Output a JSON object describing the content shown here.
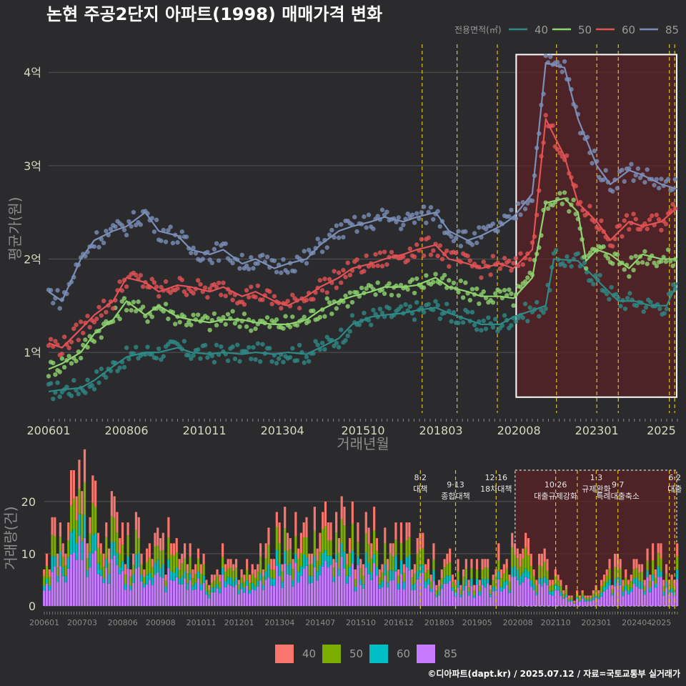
{
  "title": "논현 주공2단지 아파트(1998) 매매가격 변화",
  "credit": "©디아파트(dapt.kr) / 2025.07.12 / 자료=국토교통부 실거래가",
  "colors": {
    "background": "#2b2b2d",
    "grid": "#545454",
    "highlight_fill": "#5a2226",
    "highlight_border": "#ffffff",
    "event_line": "#e0c020",
    "price_series": [
      "#2e8a86",
      "#8fd46f",
      "#e35255",
      "#7b8fb8"
    ],
    "volume_series": [
      "#f8766d",
      "#7cae00",
      "#00bfc4",
      "#c77cff"
    ]
  },
  "chart_data": [
    {
      "type": "line",
      "title": "논현 주공2단지 아파트(1998) 매매가격 변화",
      "xlabel": "거래년월",
      "ylabel": "평균가(원)",
      "x_ticks": [
        "200601",
        "200806",
        "201011",
        "201304",
        "201510",
        "201803",
        "202008",
        "202301",
        "2025"
      ],
      "y_ticks": [
        "1억",
        "2억",
        "3억",
        "4억"
      ],
      "y_tick_values": [
        1,
        2,
        3,
        4
      ],
      "y_unit": "억원",
      "ylim": [
        0.35,
        4.3
      ],
      "x_range": [
        "2006-01",
        "2025-07"
      ],
      "grid": true,
      "legend_title": "전용면적(㎡)",
      "legend_position": "top-right",
      "highlight_range": [
        "2020-07",
        "2025-07"
      ],
      "x_unit": "거래년월 (year-month)",
      "series": [
        {
          "name": "40",
          "points": [
            [
              "2006-01",
              0.58
            ],
            [
              "2006-06",
              0.6
            ],
            [
              "2007-01",
              0.62
            ],
            [
              "2007-06",
              0.7
            ],
            [
              "2008-01",
              0.85
            ],
            [
              "2008-06",
              0.95
            ],
            [
              "2009-01",
              1.0
            ],
            [
              "2009-06",
              1.0
            ],
            [
              "2010-01",
              1.05
            ],
            [
              "2010-06",
              1.0
            ],
            [
              "2011-01",
              0.98
            ],
            [
              "2011-06",
              1.0
            ],
            [
              "2012-01",
              0.98
            ],
            [
              "2012-06",
              1.0
            ],
            [
              "2013-01",
              0.98
            ],
            [
              "2013-06",
              1.0
            ],
            [
              "2014-01",
              0.98
            ],
            [
              "2014-06",
              1.05
            ],
            [
              "2015-01",
              1.15
            ],
            [
              "2015-06",
              1.3
            ],
            [
              "2016-01",
              1.38
            ],
            [
              "2016-06",
              1.4
            ],
            [
              "2017-01",
              1.42
            ],
            [
              "2017-06",
              1.45
            ],
            [
              "2018-01",
              1.48
            ],
            [
              "2018-06",
              1.42
            ],
            [
              "2019-01",
              1.35
            ],
            [
              "2019-06",
              1.3
            ],
            [
              "2020-01",
              1.3
            ],
            [
              "2020-06",
              1.38
            ],
            [
              "2021-01",
              1.45
            ],
            [
              "2021-06",
              1.5
            ],
            [
              "2021-09",
              2.0
            ],
            [
              "2022-06",
              1.98
            ],
            [
              "2023-03",
              1.72
            ],
            [
              "2023-09",
              1.55
            ],
            [
              "2024-03",
              1.55
            ],
            [
              "2024-09",
              1.5
            ],
            [
              "2025-03",
              1.5
            ],
            [
              "2025-07",
              1.75
            ]
          ]
        },
        {
          "name": "50",
          "points": [
            [
              "2006-01",
              0.82
            ],
            [
              "2006-06",
              0.88
            ],
            [
              "2007-01",
              1.0
            ],
            [
              "2007-06",
              1.2
            ],
            [
              "2008-01",
              1.35
            ],
            [
              "2008-06",
              1.55
            ],
            [
              "2009-01",
              1.4
            ],
            [
              "2009-06",
              1.5
            ],
            [
              "2010-01",
              1.38
            ],
            [
              "2010-06",
              1.35
            ],
            [
              "2011-01",
              1.32
            ],
            [
              "2011-06",
              1.35
            ],
            [
              "2012-01",
              1.35
            ],
            [
              "2012-06",
              1.32
            ],
            [
              "2013-01",
              1.3
            ],
            [
              "2013-06",
              1.3
            ],
            [
              "2014-01",
              1.35
            ],
            [
              "2014-06",
              1.45
            ],
            [
              "2015-01",
              1.55
            ],
            [
              "2015-06",
              1.6
            ],
            [
              "2016-01",
              1.65
            ],
            [
              "2016-06",
              1.7
            ],
            [
              "2017-01",
              1.7
            ],
            [
              "2017-06",
              1.72
            ],
            [
              "2018-01",
              1.8
            ],
            [
              "2018-06",
              1.7
            ],
            [
              "2019-01",
              1.65
            ],
            [
              "2019-06",
              1.6
            ],
            [
              "2020-01",
              1.6
            ],
            [
              "2020-06",
              1.58
            ],
            [
              "2021-01",
              1.8
            ],
            [
              "2021-06",
              2.6
            ],
            [
              "2022-01",
              2.65
            ],
            [
              "2022-06",
              2.5
            ],
            [
              "2022-09",
              1.98
            ],
            [
              "2023-01",
              2.1
            ],
            [
              "2023-06",
              2.05
            ],
            [
              "2024-01",
              1.9
            ],
            [
              "2024-06",
              2.05
            ],
            [
              "2025-01",
              2.0
            ],
            [
              "2025-07",
              2.0
            ]
          ]
        },
        {
          "name": "60",
          "points": [
            [
              "2006-01",
              1.1
            ],
            [
              "2006-06",
              1.05
            ],
            [
              "2007-01",
              1.25
            ],
            [
              "2007-06",
              1.4
            ],
            [
              "2008-01",
              1.55
            ],
            [
              "2008-06",
              1.8
            ],
            [
              "2009-01",
              1.75
            ],
            [
              "2009-06",
              1.65
            ],
            [
              "2010-01",
              1.72
            ],
            [
              "2010-06",
              1.7
            ],
            [
              "2011-01",
              1.65
            ],
            [
              "2011-06",
              1.7
            ],
            [
              "2012-01",
              1.6
            ],
            [
              "2012-06",
              1.65
            ],
            [
              "2013-01",
              1.55
            ],
            [
              "2013-06",
              1.5
            ],
            [
              "2014-01",
              1.6
            ],
            [
              "2014-06",
              1.7
            ],
            [
              "2015-01",
              1.8
            ],
            [
              "2015-06",
              1.9
            ],
            [
              "2016-01",
              1.95
            ],
            [
              "2016-06",
              2.0
            ],
            [
              "2017-01",
              2.05
            ],
            [
              "2017-06",
              2.1
            ],
            [
              "2018-01",
              2.15
            ],
            [
              "2018-06",
              2.0
            ],
            [
              "2019-01",
              1.95
            ],
            [
              "2019-06",
              1.9
            ],
            [
              "2020-01",
              1.95
            ],
            [
              "2020-06",
              1.9
            ],
            [
              "2021-01",
              2.1
            ],
            [
              "2021-06",
              3.5
            ],
            [
              "2022-01",
              3.1
            ],
            [
              "2022-06",
              2.6
            ],
            [
              "2023-01",
              2.4
            ],
            [
              "2023-06",
              2.2
            ],
            [
              "2024-01",
              2.4
            ],
            [
              "2024-06",
              2.35
            ],
            [
              "2025-01",
              2.4
            ],
            [
              "2025-07",
              2.55
            ]
          ]
        },
        {
          "name": "85",
          "points": [
            [
              "2006-01",
              1.65
            ],
            [
              "2006-06",
              1.55
            ],
            [
              "2007-01",
              2.0
            ],
            [
              "2007-06",
              2.2
            ],
            [
              "2008-01",
              2.3
            ],
            [
              "2008-06",
              2.35
            ],
            [
              "2009-01",
              2.5
            ],
            [
              "2009-06",
              2.3
            ],
            [
              "2010-01",
              2.25
            ],
            [
              "2010-06",
              2.1
            ],
            [
              "2011-01",
              2.05
            ],
            [
              "2011-06",
              2.1
            ],
            [
              "2012-01",
              1.95
            ],
            [
              "2012-06",
              2.0
            ],
            [
              "2013-01",
              1.9
            ],
            [
              "2013-06",
              1.95
            ],
            [
              "2014-01",
              2.0
            ],
            [
              "2014-06",
              2.15
            ],
            [
              "2015-01",
              2.3
            ],
            [
              "2015-06",
              2.35
            ],
            [
              "2016-01",
              2.4
            ],
            [
              "2016-06",
              2.45
            ],
            [
              "2017-01",
              2.4
            ],
            [
              "2017-06",
              2.45
            ],
            [
              "2018-01",
              2.5
            ],
            [
              "2018-06",
              2.3
            ],
            [
              "2019-01",
              2.2
            ],
            [
              "2019-06",
              2.25
            ],
            [
              "2020-01",
              2.35
            ],
            [
              "2020-06",
              2.45
            ],
            [
              "2021-01",
              2.7
            ],
            [
              "2021-06",
              4.1
            ],
            [
              "2022-01",
              4.05
            ],
            [
              "2022-06",
              3.5
            ],
            [
              "2023-01",
              3.0
            ],
            [
              "2023-06",
              2.8
            ],
            [
              "2024-01",
              2.95
            ],
            [
              "2024-06",
              2.9
            ],
            [
              "2025-01",
              2.8
            ],
            [
              "2025-07",
              2.75
            ]
          ]
        }
      ],
      "event_lines": [
        "2017-08",
        "2018-09",
        "2019-12",
        "2021-10",
        "2023-01",
        "2023-09",
        "2025-04",
        "2025-06"
      ]
    },
    {
      "type": "bar",
      "stacked": true,
      "ylabel": "거래량(건)",
      "y_ticks": [
        "0",
        "10",
        "20"
      ],
      "y_tick_values": [
        0,
        10,
        20
      ],
      "ylim": [
        0,
        26
      ],
      "x_ticks": [
        "200601",
        "200703",
        "200806",
        "200908",
        "201011",
        "201201",
        "201304",
        "201407",
        "201510",
        "201612",
        "201803",
        "201905",
        "202008",
        "202110",
        "202301",
        "202404",
        "2025"
      ],
      "legend_position": "bottom",
      "x_unit": "거래년월 (year-month)",
      "series_names": [
        "40",
        "50",
        "60",
        "85"
      ],
      "highlight_range": [
        "2020-07",
        "2025-07"
      ],
      "volume_profile": [
        [
          2006,
          1,
          0.4
        ],
        [
          2006,
          6,
          0.6
        ],
        [
          2007,
          2,
          0.9
        ],
        [
          2007,
          6,
          0.8
        ],
        [
          2008,
          1,
          0.7
        ],
        [
          2008,
          6,
          0.55
        ],
        [
          2009,
          1,
          0.5
        ],
        [
          2009,
          8,
          0.55
        ],
        [
          2010,
          6,
          0.4
        ],
        [
          2011,
          6,
          0.35
        ],
        [
          2012,
          6,
          0.3
        ],
        [
          2013,
          3,
          0.55
        ],
        [
          2013,
          9,
          0.6
        ],
        [
          2014,
          6,
          0.55
        ],
        [
          2015,
          3,
          0.65
        ],
        [
          2015,
          9,
          0.6
        ],
        [
          2016,
          6,
          0.5
        ],
        [
          2017,
          6,
          0.45
        ],
        [
          2018,
          3,
          0.35
        ],
        [
          2018,
          9,
          0.3
        ],
        [
          2019,
          6,
          0.3
        ],
        [
          2019,
          12,
          0.35
        ],
        [
          2020,
          6,
          0.5
        ],
        [
          2020,
          9,
          0.4
        ],
        [
          2021,
          6,
          0.35
        ],
        [
          2022,
          1,
          0.12
        ],
        [
          2022,
          9,
          0.08
        ],
        [
          2023,
          3,
          0.25
        ],
        [
          2023,
          9,
          0.3
        ],
        [
          2024,
          6,
          0.35
        ],
        [
          2025,
          3,
          0.4
        ],
        [
          2025,
          7,
          0.4
        ]
      ],
      "events": [
        {
          "date": "2017-08",
          "label": "8·2 대책"
        },
        {
          "date": "2018-09",
          "label": "9·13 종합대책"
        },
        {
          "date": "2019-12",
          "label": "12·16 18차대책"
        },
        {
          "date": "2021-10",
          "label": "10·26 대출규제강화"
        },
        {
          "date": "2023-01",
          "label": "1·3 규제완화"
        },
        {
          "date": "2023-09",
          "label": "9·7 특례대출축소"
        },
        {
          "date": "2025-06",
          "label": "6·2 대출"
        }
      ],
      "event_dates_extra": [
        "2022-06",
        "2025-04"
      ]
    }
  ]
}
